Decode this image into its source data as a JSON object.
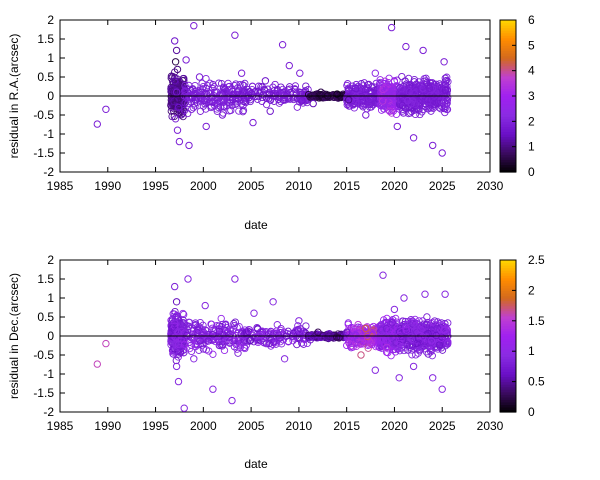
{
  "chart_data": [
    {
      "type": "scatter",
      "ylabel": "residual in R.A.(arcsec)",
      "xlabel": "date",
      "xlim": [
        1985,
        2030
      ],
      "ylim": [
        -2,
        2
      ],
      "xticks": [
        "1985",
        "1990",
        "1995",
        "2000",
        "2005",
        "2010",
        "2015",
        "2020",
        "2025",
        "2030"
      ],
      "yticks": [
        "-2",
        "-1.5",
        "-1",
        "-0.5",
        "0",
        "0.5",
        "1",
        "1.5",
        "2"
      ],
      "colorbar": {
        "range": [
          0,
          6
        ],
        "ticks": [
          "0",
          "1",
          "2",
          "3",
          "4",
          "5",
          "6"
        ],
        "colors": [
          "#000000",
          "#3a0a5e",
          "#6a0fc7",
          "#8a2be2",
          "#a020f0",
          "#c040d0",
          "#d2691e",
          "#ff8c00",
          "#ffd700"
        ]
      },
      "zero_line": true,
      "grid": false,
      "marker": "open-circle",
      "points": [
        {
          "x": 1988.9,
          "y": -0.74,
          "c": 1.9
        },
        {
          "x": 1989.8,
          "y": -0.35,
          "c": 1.9
        },
        {
          "x": 1997.0,
          "y": 1.45,
          "c": 1.6
        },
        {
          "x": 1997.2,
          "y": 1.2,
          "c": 1.2
        },
        {
          "x": 1997.1,
          "y": 0.9,
          "c": 0.6
        },
        {
          "x": 1997.3,
          "y": 0.7,
          "c": 1.0
        },
        {
          "x": 1997.0,
          "y": 0.4,
          "c": 1.4
        },
        {
          "x": 1997.2,
          "y": 0.1,
          "c": 1.8
        },
        {
          "x": 1997.4,
          "y": -0.3,
          "c": 1.6
        },
        {
          "x": 1997.1,
          "y": -0.6,
          "c": 1.8
        },
        {
          "x": 1997.3,
          "y": -0.9,
          "c": 1.9
        },
        {
          "x": 1997.5,
          "y": -1.2,
          "c": 1.9
        },
        {
          "x": 1998.2,
          "y": 0.95,
          "c": 1.9
        },
        {
          "x": 1998.5,
          "y": -1.3,
          "c": 1.9
        },
        {
          "x": 1999.0,
          "y": 1.85,
          "c": 1.9
        },
        {
          "x": 1999.6,
          "y": 0.5,
          "c": 1.9
        },
        {
          "x": 2000.3,
          "y": -0.8,
          "c": 1.9
        },
        {
          "x": 2001.0,
          "y": 0.3,
          "c": 1.9
        },
        {
          "x": 2002.0,
          "y": -0.5,
          "c": 1.9
        },
        {
          "x": 2003.3,
          "y": 1.6,
          "c": 1.9
        },
        {
          "x": 2004.0,
          "y": 0.6,
          "c": 1.9
        },
        {
          "x": 2005.2,
          "y": -0.7,
          "c": 1.9
        },
        {
          "x": 2006.5,
          "y": 0.4,
          "c": 1.6
        },
        {
          "x": 2007.0,
          "y": -0.4,
          "c": 1.6
        },
        {
          "x": 2008.3,
          "y": 1.35,
          "c": 1.9
        },
        {
          "x": 2009.0,
          "y": 0.8,
          "c": 1.9
        },
        {
          "x": 2010.1,
          "y": 0.6,
          "c": 1.9
        },
        {
          "x": 2011.5,
          "y": -0.2,
          "c": 1.4
        },
        {
          "x": 2012.3,
          "y": 0.1,
          "c": 0.6
        },
        {
          "x": 2013.0,
          "y": 0.0,
          "c": 0.4
        },
        {
          "x": 2014.0,
          "y": 0.05,
          "c": 0.2
        },
        {
          "x": 2015.2,
          "y": -0.1,
          "c": 1.1
        },
        {
          "x": 2016.0,
          "y": 0.3,
          "c": 1.9
        },
        {
          "x": 2017.0,
          "y": -0.5,
          "c": 1.9
        },
        {
          "x": 2018.0,
          "y": 0.6,
          "c": 2.4
        },
        {
          "x": 2019.0,
          "y": 0.2,
          "c": 3.2
        },
        {
          "x": 2019.5,
          "y": -0.4,
          "c": 3.4
        },
        {
          "x": 2019.7,
          "y": 1.8,
          "c": 1.9
        },
        {
          "x": 2020.3,
          "y": -0.8,
          "c": 1.9
        },
        {
          "x": 2021.2,
          "y": 1.3,
          "c": 1.9
        },
        {
          "x": 2022.0,
          "y": -1.1,
          "c": 1.9
        },
        {
          "x": 2023.0,
          "y": 1.2,
          "c": 1.9
        },
        {
          "x": 2024.0,
          "y": -1.3,
          "c": 1.9
        },
        {
          "x": 2025.0,
          "y": -1.5,
          "c": 1.9
        },
        {
          "x": 2025.2,
          "y": 0.9,
          "c": 1.9
        }
      ]
    },
    {
      "type": "scatter",
      "ylabel": "residual in Dec.(arcsec)",
      "xlabel": "date",
      "xlim": [
        1985,
        2030
      ],
      "ylim": [
        -2,
        2
      ],
      "xticks": [
        "1985",
        "1990",
        "1995",
        "2000",
        "2005",
        "2010",
        "2015",
        "2020",
        "2025",
        "2030"
      ],
      "yticks": [
        "-2",
        "-1.5",
        "-1",
        "-0.5",
        "0",
        "0.5",
        "1",
        "1.5",
        "2"
      ],
      "colorbar": {
        "range": [
          0,
          2.5
        ],
        "ticks": [
          "0",
          "0.5",
          "1",
          "1.5",
          "2",
          "2.5"
        ],
        "colors": [
          "#000000",
          "#3a0a5e",
          "#6a0fc7",
          "#8a2be2",
          "#a020f0",
          "#c040d0",
          "#d2691e",
          "#ff8c00",
          "#ffd700"
        ]
      },
      "zero_line": true,
      "grid": false,
      "marker": "open-circle",
      "points": [
        {
          "x": 1988.9,
          "y": -0.74,
          "c": 1.6
        },
        {
          "x": 1989.8,
          "y": -0.2,
          "c": 1.6
        },
        {
          "x": 1997.0,
          "y": 1.3,
          "c": 0.8
        },
        {
          "x": 1997.2,
          "y": 0.9,
          "c": 0.6
        },
        {
          "x": 1997.1,
          "y": 0.5,
          "c": 0.9
        },
        {
          "x": 1997.3,
          "y": 0.1,
          "c": 0.9
        },
        {
          "x": 1997.0,
          "y": -0.4,
          "c": 0.9
        },
        {
          "x": 1997.2,
          "y": -0.8,
          "c": 0.9
        },
        {
          "x": 1997.4,
          "y": -1.2,
          "c": 0.9
        },
        {
          "x": 1998.0,
          "y": -1.9,
          "c": 0.9
        },
        {
          "x": 1998.4,
          "y": 1.5,
          "c": 0.9
        },
        {
          "x": 1999.0,
          "y": -0.6,
          "c": 0.9
        },
        {
          "x": 2000.2,
          "y": 0.8,
          "c": 0.9
        },
        {
          "x": 2001.0,
          "y": -1.4,
          "c": 0.9
        },
        {
          "x": 2002.0,
          "y": 0.3,
          "c": 0.9
        },
        {
          "x": 2003.3,
          "y": 1.5,
          "c": 0.9
        },
        {
          "x": 2003.0,
          "y": -1.7,
          "c": 0.9
        },
        {
          "x": 2004.3,
          "y": -0.3,
          "c": 0.9
        },
        {
          "x": 2005.3,
          "y": 0.6,
          "c": 0.9
        },
        {
          "x": 2006.6,
          "y": -0.2,
          "c": 0.8
        },
        {
          "x": 2007.3,
          "y": 0.9,
          "c": 0.9
        },
        {
          "x": 2008.5,
          "y": -0.6,
          "c": 0.9
        },
        {
          "x": 2010.0,
          "y": 0.4,
          "c": 0.9
        },
        {
          "x": 2011.2,
          "y": -0.1,
          "c": 0.6
        },
        {
          "x": 2012.0,
          "y": 0.1,
          "c": 0.3
        },
        {
          "x": 2013.0,
          "y": 0.0,
          "c": 0.5
        },
        {
          "x": 2014.2,
          "y": -0.05,
          "c": 0.3
        },
        {
          "x": 2015.0,
          "y": 0.1,
          "c": 0.7
        },
        {
          "x": 2016.2,
          "y": 0.3,
          "c": 1.5
        },
        {
          "x": 2016.5,
          "y": -0.5,
          "c": 1.7
        },
        {
          "x": 2017.0,
          "y": 0.2,
          "c": 1.8
        },
        {
          "x": 2017.5,
          "y": -0.2,
          "c": 1.4
        },
        {
          "x": 2018.0,
          "y": -0.9,
          "c": 0.9
        },
        {
          "x": 2018.8,
          "y": 1.6,
          "c": 0.9
        },
        {
          "x": 2019.2,
          "y": -0.3,
          "c": 1.4
        },
        {
          "x": 2020.0,
          "y": 0.7,
          "c": 0.9
        },
        {
          "x": 2020.5,
          "y": -1.1,
          "c": 0.9
        },
        {
          "x": 2021.0,
          "y": 1.0,
          "c": 0.9
        },
        {
          "x": 2022.0,
          "y": -0.8,
          "c": 0.9
        },
        {
          "x": 2023.2,
          "y": 1.1,
          "c": 0.9
        },
        {
          "x": 2024.0,
          "y": -1.1,
          "c": 0.9
        },
        {
          "x": 2025.0,
          "y": -1.4,
          "c": 0.9
        },
        {
          "x": 2025.3,
          "y": 1.1,
          "c": 0.9
        }
      ]
    }
  ]
}
